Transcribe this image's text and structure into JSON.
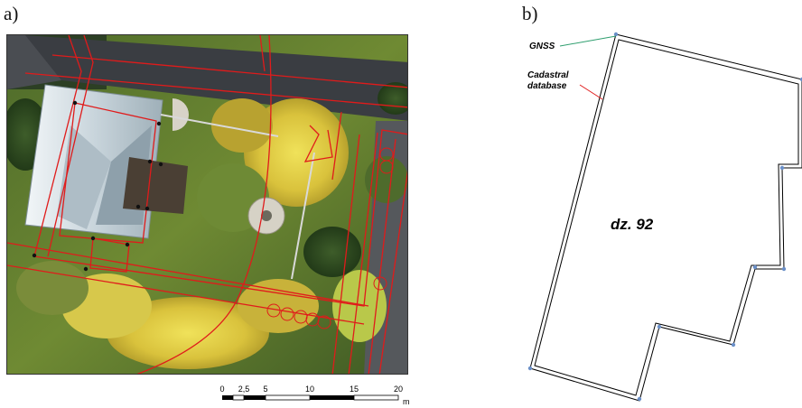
{
  "panel_a": {
    "label": "a)",
    "scale_bar": {
      "ticks": [
        "0",
        "2,5",
        "5",
        "10",
        "15",
        "20"
      ],
      "unit": "m"
    }
  },
  "panel_b": {
    "label": "b)",
    "legend": {
      "gnss_label": "GNSS",
      "cadastral_label_line1": "Cadastral",
      "cadastral_label_line2": "database"
    },
    "parcel_label": "dz. 92"
  },
  "colors": {
    "boundary_red": "#e01b1b",
    "gnss_green": "#2e9e6e",
    "vertex_blue": "#6a8fc8"
  }
}
